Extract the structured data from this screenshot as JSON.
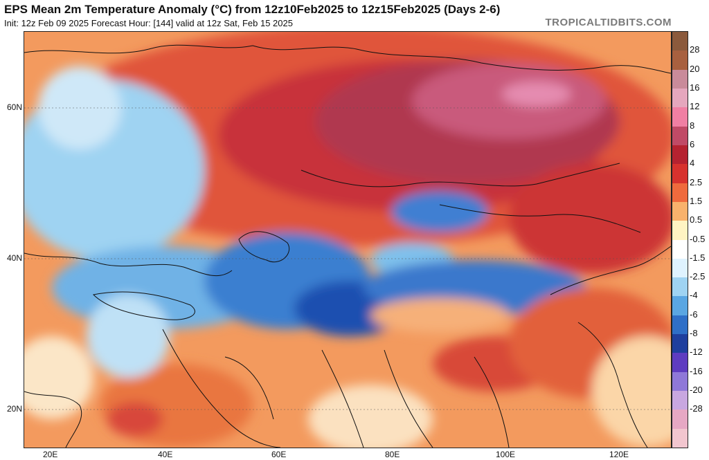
{
  "header": {
    "title": "EPS Mean 2m Temperature Anomaly (°C) from 12z10Feb2025 to 12z15Feb2025 (Days 2-6)",
    "subtitle": "Init: 12z Feb 09 2025   Forecast Hour: [144]   valid at 12z Sat, Feb 15 2025",
    "credit": "TROPICALTIDBITS.COM"
  },
  "map": {
    "region": "Asia",
    "lat_labels": [
      "60N",
      "40N",
      "20N"
    ],
    "lon_labels": [
      "20E",
      "40E",
      "60E",
      "80E",
      "100E",
      "120E"
    ]
  },
  "colorbar": {
    "labels": [
      "28",
      "20",
      "16",
      "12",
      "8",
      "6",
      "4",
      "2.5",
      "1.5",
      "0.5",
      "-0.5",
      "-1.5",
      "-2.5",
      "-4",
      "-6",
      "-8",
      "-12",
      "-16",
      "-20",
      "-28"
    ],
    "colors": [
      "#8b5a3c",
      "#a8603f",
      "#c98b9a",
      "#e5a7bd",
      "#f07fa3",
      "#c04a66",
      "#b52230",
      "#d7322e",
      "#ef6a3d",
      "#f9b26c",
      "#fff4c2",
      "#ffffff",
      "#dff3ff",
      "#9fd3f2",
      "#5aa6e2",
      "#2f6fc7",
      "#1f3f9e",
      "#5e3cc0",
      "#8f78d8",
      "#c8a7e0",
      "#e6a8c4",
      "#f2c6cf"
    ]
  }
}
